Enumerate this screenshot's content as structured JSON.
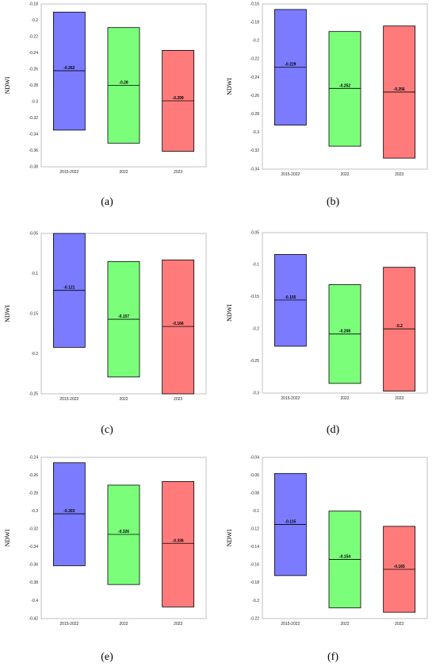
{
  "chart_data": [
    {
      "id": "a",
      "type": "box",
      "caption": "(a)",
      "ylabel": "NDWI",
      "ylim": [
        -0.38,
        -0.18
      ],
      "yticks": [
        -0.18,
        -0.2,
        -0.22,
        -0.24,
        -0.26,
        -0.28,
        -0.3,
        -0.32,
        -0.34,
        -0.36,
        -0.38
      ],
      "ytick_labels": [
        "-0.18",
        "-0.2",
        "-0.22",
        "-0.24",
        "-0.26",
        "-0.28",
        "-0.3",
        "-0.32",
        "-0.34",
        "-0.36",
        "-0.38"
      ],
      "categories": [
        "2015-2022",
        "2022",
        "2023"
      ],
      "boxes": [
        {
          "low": -0.335,
          "high": -0.19,
          "mid": -0.262,
          "label": "-0.262"
        },
        {
          "low": -0.351,
          "high": -0.209,
          "mid": -0.28,
          "label": "-0.28"
        },
        {
          "low": -0.361,
          "high": -0.237,
          "mid": -0.299,
          "label": "-0.299"
        }
      ]
    },
    {
      "id": "b",
      "type": "box",
      "caption": "(b)",
      "ylabel": "NDWI",
      "ylim": [
        -0.34,
        -0.16
      ],
      "yticks": [
        -0.16,
        -0.18,
        -0.2,
        -0.22,
        -0.24,
        -0.26,
        -0.28,
        -0.3,
        -0.32,
        -0.34
      ],
      "ytick_labels": [
        "-0.16",
        "-0.18",
        "-0.2",
        "-0.22",
        "-0.24",
        "-0.26",
        "-0.28",
        "-0.3",
        "-0.32",
        "-0.34"
      ],
      "categories": [
        "2015-2022",
        "2022",
        "2023"
      ],
      "boxes": [
        {
          "low": -0.292,
          "high": -0.166,
          "mid": -0.229,
          "label": "-0.229"
        },
        {
          "low": -0.315,
          "high": -0.19,
          "mid": -0.252,
          "label": "-0.252"
        },
        {
          "low": -0.328,
          "high": -0.184,
          "mid": -0.256,
          "label": "-0.256"
        }
      ]
    },
    {
      "id": "c",
      "type": "box",
      "caption": "(c)",
      "ylabel": "NDWI",
      "ylim": [
        -0.25,
        -0.05
      ],
      "yticks": [
        -0.05,
        -0.1,
        -0.15,
        -0.2,
        -0.25
      ],
      "ytick_labels": [
        "-0.05",
        "-0.1",
        "-0.15",
        "-0.2",
        "-0.25"
      ],
      "categories": [
        "2015-2022",
        "2022",
        "2023"
      ],
      "boxes": [
        {
          "low": -0.192,
          "high": -0.05,
          "mid": -0.121,
          "label": "-0.121"
        },
        {
          "low": -0.229,
          "high": -0.085,
          "mid": -0.157,
          "label": "-0.157"
        },
        {
          "low": -0.25,
          "high": -0.083,
          "mid": -0.166,
          "label": "-0.166"
        }
      ]
    },
    {
      "id": "d",
      "type": "box",
      "caption": "(d)",
      "ylabel": "NDWI",
      "ylim": [
        -0.3,
        -0.05
      ],
      "yticks": [
        -0.05,
        -0.1,
        -0.15,
        -0.2,
        -0.25,
        -0.3
      ],
      "ytick_labels": [
        "-0.05",
        "-0.1",
        "-0.15",
        "-0.2",
        "-0.25",
        "-0.3"
      ],
      "categories": [
        "2015-2022",
        "2022",
        "2023"
      ],
      "boxes": [
        {
          "low": -0.227,
          "high": -0.084,
          "mid": -0.155,
          "label": "-0.155"
        },
        {
          "low": -0.285,
          "high": -0.131,
          "mid": -0.208,
          "label": "-0.208"
        },
        {
          "low": -0.297,
          "high": -0.104,
          "mid": -0.2,
          "label": "-0.2"
        }
      ]
    },
    {
      "id": "e",
      "type": "box",
      "caption": "(e)",
      "ylabel": "NDWI",
      "ylim": [
        -0.42,
        -0.24
      ],
      "yticks": [
        -0.24,
        -0.26,
        -0.28,
        -0.3,
        -0.32,
        -0.34,
        -0.36,
        -0.38,
        -0.4,
        -0.42
      ],
      "ytick_labels": [
        "-0.24",
        "-0.26",
        "-0.28",
        "-0.3",
        "-0.32",
        "-0.34",
        "-0.36",
        "-0.38",
        "-0.4",
        "-0.42"
      ],
      "categories": [
        "2015-2022",
        "2022",
        "2023"
      ],
      "boxes": [
        {
          "low": -0.361,
          "high": -0.246,
          "mid": -0.303,
          "label": "-0.303"
        },
        {
          "low": -0.382,
          "high": -0.271,
          "mid": -0.326,
          "label": "-0.326"
        },
        {
          "low": -0.407,
          "high": -0.267,
          "mid": -0.336,
          "label": "-0.336"
        }
      ]
    },
    {
      "id": "f",
      "type": "box",
      "caption": "(f)",
      "ylabel": "NDWI",
      "ylim": [
        -0.22,
        -0.04
      ],
      "yticks": [
        -0.04,
        -0.06,
        -0.08,
        -0.1,
        -0.12,
        -0.14,
        -0.16,
        -0.18,
        -0.2,
        -0.22
      ],
      "ytick_labels": [
        "-0.04",
        "-0.06",
        "-0.08",
        "-0.1",
        "-0.12",
        "-0.14",
        "-0.16",
        "-0.18",
        "-0.2",
        "-0.22"
      ],
      "categories": [
        "2015-2022",
        "2022",
        "2023"
      ],
      "boxes": [
        {
          "low": -0.172,
          "high": -0.058,
          "mid": -0.115,
          "label": "-0.115"
        },
        {
          "low": -0.208,
          "high": -0.1,
          "mid": -0.154,
          "label": "-0.154"
        },
        {
          "low": -0.213,
          "high": -0.117,
          "mid": -0.165,
          "label": "-0.165"
        }
      ]
    }
  ],
  "colors": {
    "series": [
      "#7b7bff",
      "#7bff7b",
      "#ff7b7b"
    ],
    "box_edge": "#000000",
    "frame": "#b3b3b3",
    "tick_text": "#222222"
  }
}
